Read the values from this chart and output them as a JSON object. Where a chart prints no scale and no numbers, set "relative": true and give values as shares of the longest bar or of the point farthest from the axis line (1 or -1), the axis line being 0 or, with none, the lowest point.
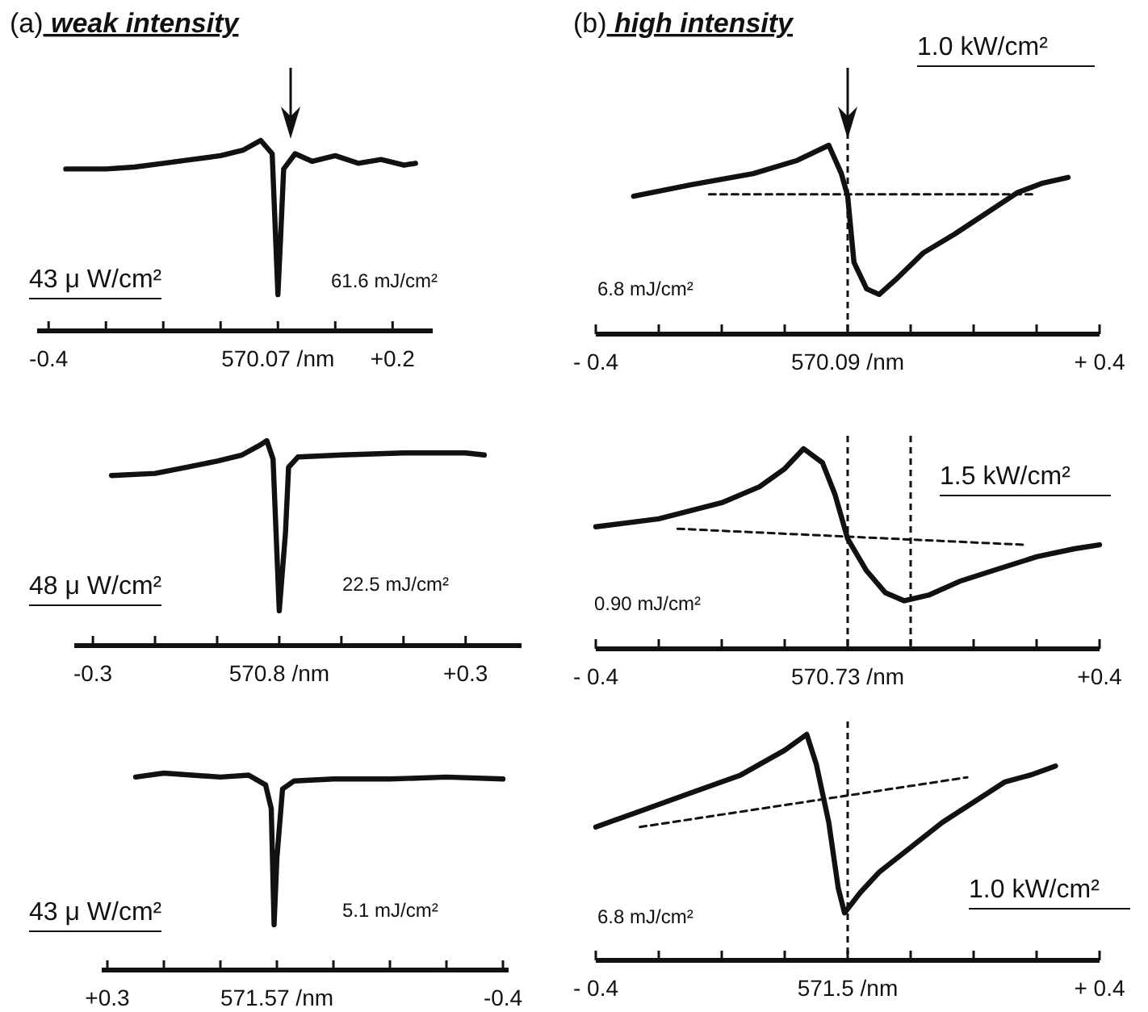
{
  "chart_data": [
    {
      "type": "line",
      "title": "(a) weak intensity",
      "relative": true,
      "xlim": [
        -0.42,
        0.27
      ],
      "xticks": [
        {
          "value": -0.4,
          "label": "-0.4"
        },
        {
          "value": -0.3,
          "label": null
        },
        {
          "value": -0.2,
          "label": null
        },
        {
          "value": -0.1,
          "label": null
        },
        {
          "value": 0,
          "label": null
        },
        {
          "value": 0.1,
          "label": null
        },
        {
          "value": 0.2,
          "label": "+0.2"
        }
      ],
      "series": [
        {
          "color": "#111111",
          "line_style": "solid",
          "x": [
            -0.37,
            -0.3,
            -0.25,
            -0.2,
            -0.15,
            -0.1,
            -0.06,
            -0.03,
            -0.01,
            0,
            0.005,
            0.01,
            0.03,
            0.06,
            0.1,
            0.14,
            0.18,
            0.22,
            0.24
          ],
          "values": [
            0.85,
            0.85,
            0.86,
            0.88,
            0.9,
            0.92,
            0.95,
            1,
            0.93,
            0.19,
            0.51,
            0.85,
            0.93,
            0.89,
            0.92,
            0.88,
            0.9,
            0.87,
            0.88
          ]
        }
      ],
      "xlabel": "570.07 /nm",
      "annotations": [
        "43 μ W/cm²",
        "61.6 mJ/cm²"
      ]
    },
    {
      "type": "line",
      "title": "(b) high intensity",
      "relative": true,
      "xlim": [
        -0.4,
        0.4
      ],
      "xticks": [
        {
          "value": -0.4,
          "label": "- 0.4"
        },
        {
          "value": -0.3,
          "label": null
        },
        {
          "value": -0.2,
          "label": null
        },
        {
          "value": -0.1,
          "label": null
        },
        {
          "value": 0,
          "label": null
        },
        {
          "value": 0.1,
          "label": null
        },
        {
          "value": 0.2,
          "label": null
        },
        {
          "value": 0.3,
          "label": null
        },
        {
          "value": 0.4,
          "label": "+ 0.4"
        }
      ],
      "series": [
        {
          "color": "#111111",
          "line_style": "solid",
          "x": [
            -0.34,
            -0.25,
            -0.15,
            -0.08,
            -0.03,
            -0.01,
            0,
            0.01,
            0.03,
            0.05,
            0.08,
            0.12,
            0.17,
            0.22,
            0.27,
            0.31,
            0.35
          ],
          "values": [
            0.73,
            0.79,
            0.85,
            0.92,
            1,
            0.85,
            0.73,
            0.38,
            0.24,
            0.21,
            0.3,
            0.43,
            0.53,
            0.64,
            0.75,
            0.8,
            0.83
          ]
        },
        {
          "color": "#111111",
          "line_style": "dashed",
          "x": [
            -0.22,
            0.3
          ],
          "values": [
            0.74,
            0.74
          ]
        }
      ],
      "ref_lines": [
        {
          "axis": "x",
          "value": 0,
          "line_style": "dashed"
        }
      ],
      "xlabel": "570.09 /nm",
      "annotations": [
        "1.0 kW/cm²",
        "6.8 mJ/cm²"
      ]
    },
    {
      "type": "line",
      "relative": true,
      "xlim": [
        -0.33,
        0.39
      ],
      "xticks": [
        {
          "value": -0.3,
          "label": "-0.3"
        },
        {
          "value": -0.2,
          "label": null
        },
        {
          "value": -0.1,
          "label": null
        },
        {
          "value": 0,
          "label": null
        },
        {
          "value": 0.1,
          "label": null
        },
        {
          "value": 0.2,
          "label": null
        },
        {
          "value": 0.3,
          "label": "+0.3"
        }
      ],
      "series": [
        {
          "color": "#111111",
          "line_style": "solid",
          "x": [
            -0.27,
            -0.2,
            -0.15,
            -0.1,
            -0.06,
            -0.03,
            -0.02,
            -0.01,
            0,
            0.01,
            0.015,
            0.03,
            0.1,
            0.2,
            0.3,
            0.33
          ],
          "values": [
            0.83,
            0.84,
            0.87,
            0.9,
            0.93,
            0.98,
            1,
            0.91,
            0.17,
            0.55,
            0.87,
            0.92,
            0.93,
            0.94,
            0.94,
            0.93
          ]
        }
      ],
      "xlabel": "570.8 /nm",
      "annotations": [
        "48 μ W/cm²",
        "22.5 mJ/cm²"
      ]
    },
    {
      "type": "line",
      "relative": true,
      "xlim": [
        -0.4,
        0.4
      ],
      "xticks": [
        {
          "value": -0.4,
          "label": "- 0.4"
        },
        {
          "value": -0.3,
          "label": null
        },
        {
          "value": -0.2,
          "label": null
        },
        {
          "value": -0.1,
          "label": null
        },
        {
          "value": 0,
          "label": null
        },
        {
          "value": 0.1,
          "label": null
        },
        {
          "value": 0.2,
          "label": null
        },
        {
          "value": 0.3,
          "label": null
        },
        {
          "value": 0.4,
          "label": "+0.4"
        }
      ],
      "series": [
        {
          "color": "#111111",
          "line_style": "solid",
          "x": [
            -0.4,
            -0.3,
            -0.2,
            -0.14,
            -0.1,
            -0.07,
            -0.04,
            -0.02,
            0,
            0.03,
            0.06,
            0.09,
            0.13,
            0.18,
            0.24,
            0.3,
            0.36,
            0.4
          ],
          "values": [
            0.61,
            0.65,
            0.73,
            0.81,
            0.9,
            1,
            0.93,
            0.77,
            0.55,
            0.39,
            0.28,
            0.24,
            0.27,
            0.34,
            0.4,
            0.46,
            0.5,
            0.52
          ]
        },
        {
          "color": "#111111",
          "line_style": "dashed",
          "x": [
            -0.27,
            0.28
          ],
          "values": [
            0.6,
            0.52
          ]
        }
      ],
      "ref_lines": [
        {
          "axis": "x",
          "value": 0,
          "line_style": "dashed"
        },
        {
          "axis": "x",
          "value": 0.1,
          "line_style": "dashed"
        }
      ],
      "xlabel": "570.73 /nm",
      "annotations": [
        "1.5 kW/cm²",
        "0.90 mJ/cm²"
      ]
    },
    {
      "type": "line",
      "relative": true,
      "xlim": [
        0.31,
        -0.41
      ],
      "xticks": [
        {
          "value": 0.3,
          "label": "+0.3"
        },
        {
          "value": 0.2,
          "label": null
        },
        {
          "value": 0.1,
          "label": null
        },
        {
          "value": 0,
          "label": null
        },
        {
          "value": -0.1,
          "label": null
        },
        {
          "value": -0.2,
          "label": null
        },
        {
          "value": -0.3,
          "label": null
        },
        {
          "value": -0.4,
          "label": "-0.4"
        }
      ],
      "series": [
        {
          "color": "#111111",
          "line_style": "solid",
          "x": [
            0.25,
            0.2,
            0.15,
            0.1,
            0.05,
            0.02,
            0.01,
            0.005,
            0,
            -0.01,
            -0.03,
            -0.1,
            -0.2,
            -0.3,
            -0.4
          ],
          "values": [
            0.98,
            1,
            0.99,
            0.98,
            0.99,
            0.94,
            0.82,
            0.23,
            0.57,
            0.92,
            0.96,
            0.97,
            0.97,
            0.98,
            0.97
          ]
        }
      ],
      "xlabel": "571.57 /nm",
      "annotations": [
        "43 μ W/cm²",
        "5.1 mJ/cm²"
      ]
    },
    {
      "type": "line",
      "relative": true,
      "xlim": [
        -0.4,
        0.4
      ],
      "xticks": [
        {
          "value": -0.4,
          "label": "- 0.4"
        },
        {
          "value": -0.3,
          "label": null
        },
        {
          "value": -0.2,
          "label": null
        },
        {
          "value": -0.1,
          "label": null
        },
        {
          "value": 0,
          "label": null
        },
        {
          "value": 0.1,
          "label": null
        },
        {
          "value": 0.2,
          "label": null
        },
        {
          "value": 0.3,
          "label": null
        },
        {
          "value": 0.4,
          "label": "+ 0.4"
        }
      ],
      "series": [
        {
          "color": "#111111",
          "line_style": "solid",
          "x": [
            -0.4,
            -0.33,
            -0.25,
            -0.17,
            -0.1,
            -0.065,
            -0.05,
            -0.03,
            -0.015,
            -0.005,
            0.02,
            0.05,
            0.1,
            0.15,
            0.2,
            0.25,
            0.29,
            0.33
          ],
          "values": [
            0.59,
            0.66,
            0.74,
            0.82,
            0.93,
            1,
            0.87,
            0.61,
            0.32,
            0.21,
            0.3,
            0.39,
            0.5,
            0.61,
            0.7,
            0.79,
            0.82,
            0.86
          ]
        },
        {
          "color": "#111111",
          "line_style": "dashed",
          "x": [
            -0.33,
            0.19
          ],
          "values": [
            0.59,
            0.81
          ]
        }
      ],
      "ref_lines": [
        {
          "axis": "x",
          "value": 0,
          "line_style": "dashed"
        }
      ],
      "xlabel": "571.5 /nm",
      "annotations": [
        "1.0 kW/cm²",
        "6.8 mJ/cm²"
      ]
    }
  ]
}
